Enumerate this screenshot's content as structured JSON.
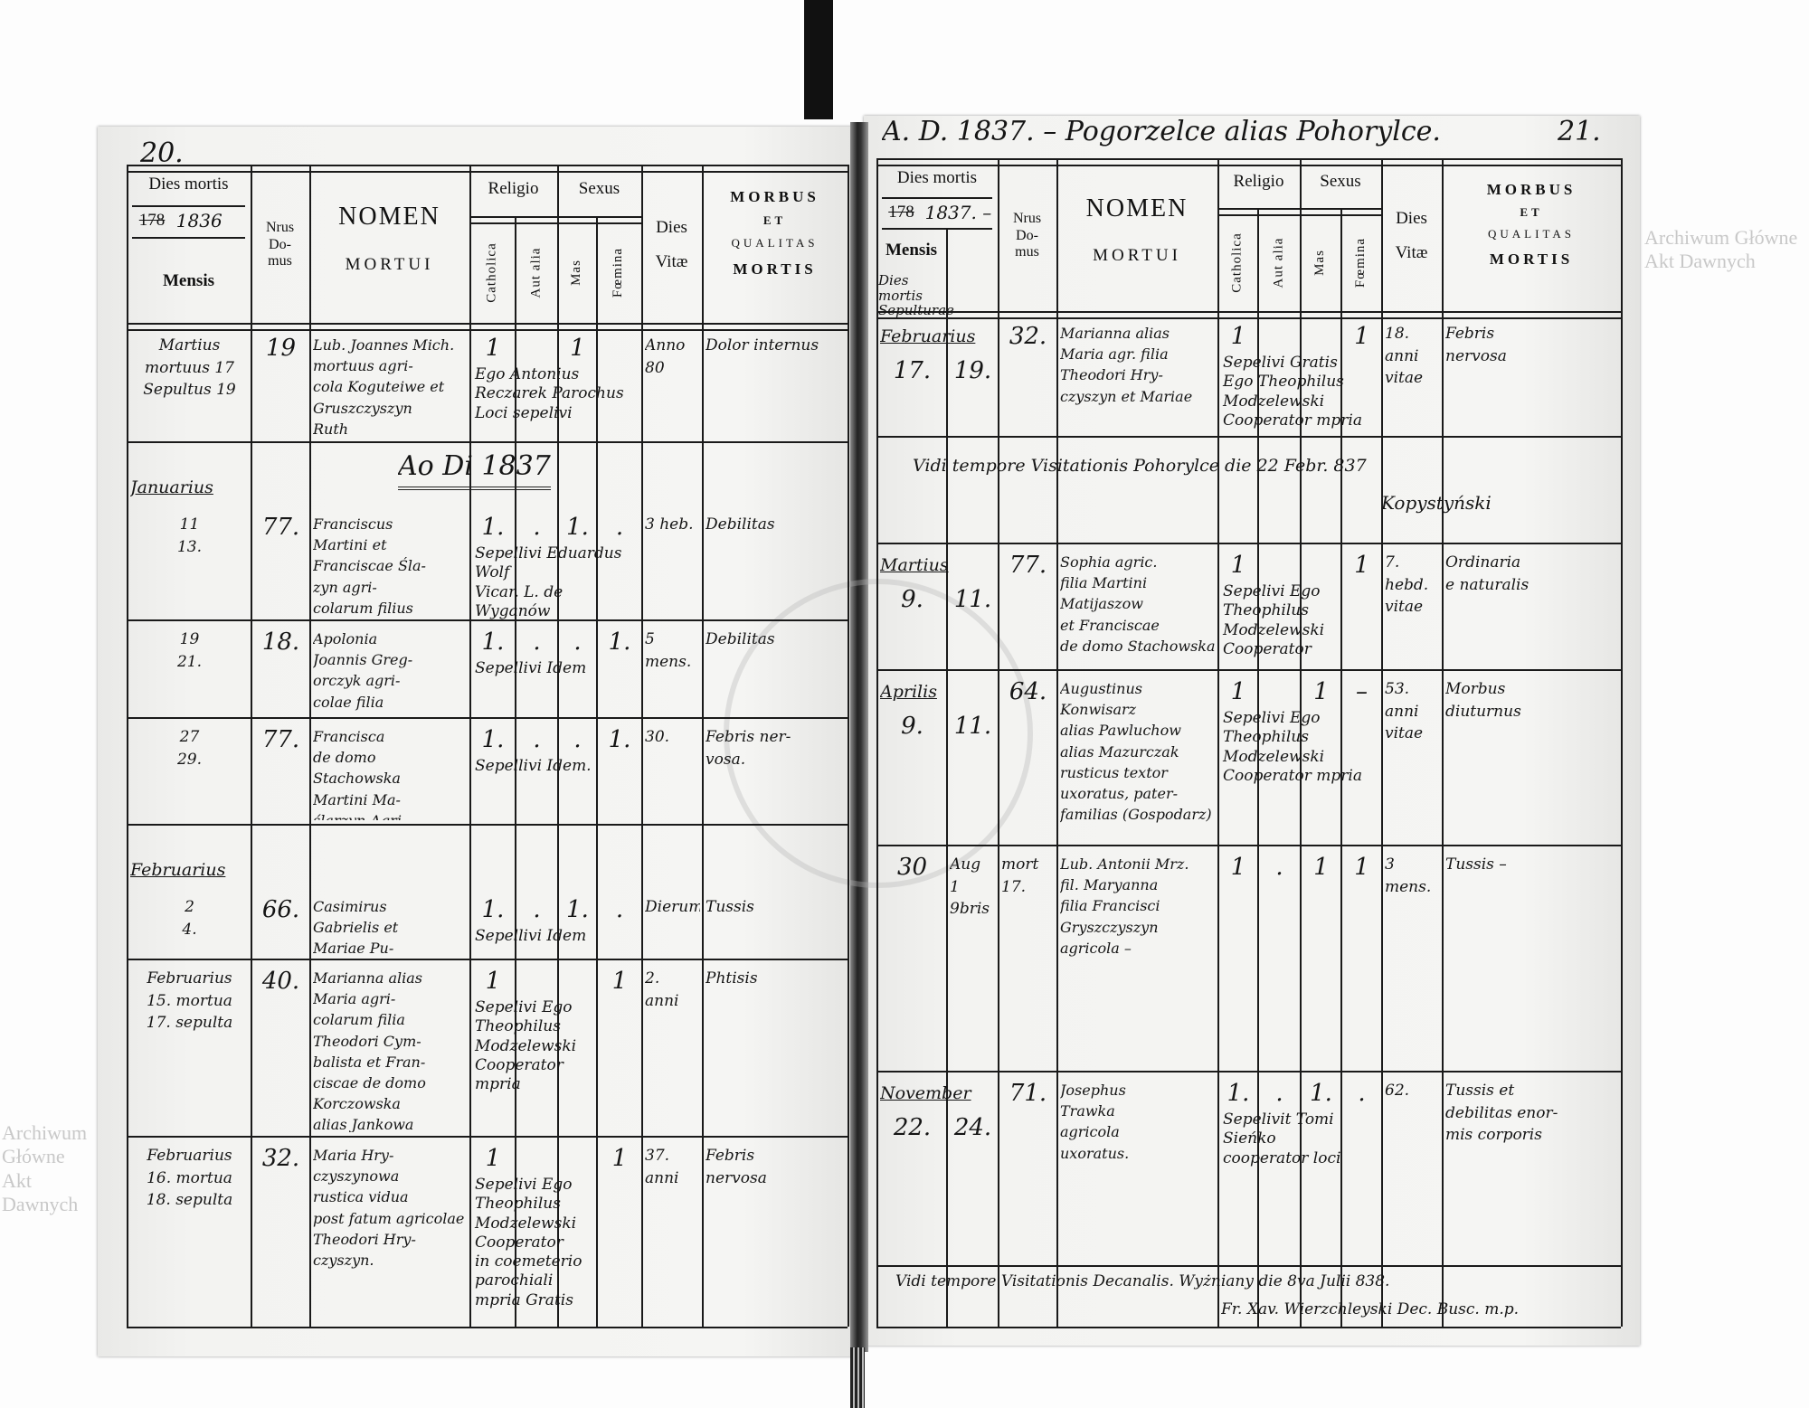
{
  "left_page": {
    "page_number": "20.",
    "header": {
      "dies_mortis": "Dies mortis",
      "year_printed": "178",
      "year_written": "1836",
      "mensis": "Mensis",
      "domus": "Nrus\nDo-\nmus",
      "nomen": "NOMEN",
      "mortui": "MORTUI",
      "religio": "Religio",
      "sexus": "Sexus",
      "catholica": "Catholica",
      "aut_alia": "Aut alia",
      "mas": "Mas",
      "foemina": "Fœmina",
      "dies_vitae": "Dies\nVitæ",
      "morbus": "MORBUS",
      "et": "ET",
      "qualitas": "QUALITAS",
      "mortis": "MORTIS"
    },
    "year_heading": "Ao Di 1837",
    "rows": [
      {
        "date": "Martius\nmortuus 17\nSepultus 19",
        "domus": "19",
        "nomen": "Lub. Joannes Mich.\nmortuus agri-\ncola Koguteiwe et\nGruszczyszyn\nRuth",
        "catholica": "1",
        "aut_alia": "",
        "mas": "1",
        "femina": "",
        "dies_vitae": "Anno\n80",
        "morbus": "Dolor internus",
        "sepelivit": "Ego Antonius Reczarek Parochus\nLoci sepelivi"
      },
      {
        "month": "Januarius",
        "date": "11\n13.",
        "domus": "77.",
        "nomen": "Franciscus\nMartini et\nFranciscae Śla-\nzyn agri-\ncolarum filius",
        "catholica": "1.",
        "aut_alia": ".",
        "mas": "1.",
        "femina": ".",
        "dies_vitae": "3 heb.",
        "morbus": "Debilitas",
        "sepelivit": "Sepellivi Eduardus Wolf\nVicar. L. de Wyganów"
      },
      {
        "date": "19\n21.",
        "domus": "18.",
        "nomen": "Apolonia\nJoannis Greg-\norczyk agri-\ncolae filia",
        "catholica": "1.",
        "aut_alia": ".",
        "mas": ".",
        "femina": "1.",
        "dies_vitae": "5 mens.",
        "morbus": "Debilitas",
        "sepelivit": "Sepellivi Idem"
      },
      {
        "date": "27\n29.",
        "domus": "77.",
        "nomen": "Francisca\nde domo Stachowska\nMartini Ma-\nślarzyn Agri-\ncola conjunx",
        "catholica": "1.",
        "aut_alia": ".",
        "mas": ".",
        "femina": "1.",
        "dies_vitae": "30.",
        "morbus": "Febris ner-\nvosa.",
        "sepelivit": "Sepellivi Idem."
      },
      {
        "month": "Februarius",
        "date": "2\n4.",
        "domus": "66.",
        "nomen": "Casimirus\nGabrielis et\nMariae Pu-\nszchow agric.",
        "catholica": "1.",
        "aut_alia": ".",
        "mas": "1.",
        "femina": ".",
        "dies_vitae": "Dierum",
        "morbus": "Tussis",
        "sepelivit": "Sepellivi Idem"
      },
      {
        "date": "Februarius\n15. mortua\n17. sepulta",
        "domus": "40.",
        "nomen": "Marianna alias\nMaria agri-\ncolarum filia\nTheodori Cym-\nbalista et Fran-\nciscae de domo\nKorczowska\nalias Jankowa",
        "catholica": "1",
        "aut_alia": "",
        "mas": "",
        "femina": "1",
        "dies_vitae": "2.\nanni",
        "morbus": "Phtisis",
        "sepelivit": "Sepelivi Ego\nTheophilus\nModzelewski\nCooperator\nmpria"
      },
      {
        "date": "Februarius\n16. mortua\n18. sepulta",
        "domus": "32.",
        "nomen": "Maria Hry-\nczyszynowa\nrustica vidua\npost fatum agricolae\nTheodori Hry-\nczyszyn.",
        "catholica": "1",
        "aut_alia": "",
        "mas": "",
        "femina": "1",
        "dies_vitae": "37.\nanni",
        "morbus": "Febris\nnervosa",
        "sepelivit": "Sepelivi Ego\nTheophilus\nModzelewski\nCooperator\nin coemeterio parochiali\nmpria  Gratis"
      }
    ]
  },
  "right_page": {
    "title": "A. D. 1837. – Pogorzelce alias Pohorylce.",
    "page_number": "21.",
    "header": {
      "dies_mortis": "Dies mortis",
      "year_printed": "178",
      "year_written": "1837. –",
      "mensis": "Mensis",
      "mensis_note": "Dies\nmortis Sepulturae",
      "domus": "Nrus\nDo-\nmus",
      "nomen": "NOMEN",
      "mortui": "MORTUI",
      "religio": "Religio",
      "sexus": "Sexus",
      "catholica": "Catholica",
      "aut_alia": "Aut alia",
      "mas": "Mas",
      "foemina": "Fœmina",
      "dies_vitae": "Dies\nVitæ",
      "morbus": "MORBUS",
      "et": "ET",
      "qualitas": "QUALITAS",
      "mortis": "MORTIS"
    },
    "rows": [
      {
        "month": "Februarius",
        "dies_mortis": "17.",
        "dies_sepulturae": "19.",
        "domus": "32.",
        "nomen": "Marianna alias\nMaria agr. filia\nTheodori Hry-\nczyszyn et Mariae",
        "catholica": "1",
        "aut_alia": "",
        "mas": "",
        "femina": "1",
        "dies_vitae": "18.\nanni\nvitae",
        "morbus": "Febris\nnervosa",
        "sepelivit": "Sepelivi Gratis\nEgo Theophilus\nModzelewski\nCooperator mpria"
      },
      {
        "note": "Vidi tempore Visitationis Pohorylce die 22 Febr. 837",
        "signature": "Kopystyński"
      },
      {
        "month": "Martius",
        "dies_mortis": "9.",
        "dies_sepulturae": "11.",
        "domus": "77.",
        "nomen": "Sophia agric.\nfilia Martini\nMatijaszow\net Franciscae\nde domo Stachowska",
        "catholica": "1",
        "aut_alia": "",
        "mas": "",
        "femina": "1",
        "dies_vitae": "7.\nhebd.\nvitae",
        "morbus": "Ordinaria\ne naturalis",
        "sepelivit": "Sepelivi Ego\nTheophilus\nModzelewski\nCooperator"
      },
      {
        "month": "Aprilis",
        "dies_mortis": "9.",
        "dies_sepulturae": "11.",
        "domus": "64.",
        "nomen": "Augustinus\nKonwisarz\nalias Pawluchow\nalias Mazurczak\nrusticus textor\nuxoratus, pater-\nfamilias (Gospodarz)",
        "catholica": "1",
        "aut_alia": "",
        "mas": "1",
        "femina": "–",
        "dies_vitae": "53.\nanni\nvitae",
        "morbus": "Morbus\ndiuturnus",
        "sepelivit": "Sepelivi Ego\nTheophilus\nModzelewski\nCooperator mpria"
      },
      {
        "month": "",
        "dies_mortis": "30",
        "dies_sepulturae": "Aug\n1 9bris",
        "domus": "mort\n17.",
        "nomen": "Lub. Antonii Mrz.\nfil. Maryanna\nfilia Francisci\nGryszczyszyn\nagricola –",
        "catholica": "1",
        "aut_alia": ".",
        "mas": "1",
        "femina": "1",
        "dies_vitae": "3 mens.",
        "morbus": "Tussis –",
        "sepelivit": ""
      },
      {
        "month": "November",
        "dies_mortis": "22.",
        "dies_sepulturae": "24.",
        "domus": "71.",
        "nomen": "Josephus\nTrawka\nagricola\nuxoratus.",
        "catholica": "1.",
        "aut_alia": ".",
        "mas": "1.",
        "femina": ".",
        "dies_vitae": "62.",
        "morbus": "Tussis et\ndebilitas enor-\nmis corporis",
        "sepelivit": "Sepelivit Tomi Sieńko\ncooperator loci"
      }
    ],
    "footer": {
      "line1": "Vidi tempore Visitationis Decanalis. Wyżniany die 8va Julii 838.",
      "line2": "Fr. Xav. Wierzchleyski Dec. Busc. m.p."
    }
  },
  "watermark": {
    "text": "Archiwum Główne Akt Dawnych",
    "color": "#c8c8c8"
  },
  "colors": {
    "paper": "#f3f3f1",
    "ink": "#151515",
    "binding": "#111111"
  }
}
